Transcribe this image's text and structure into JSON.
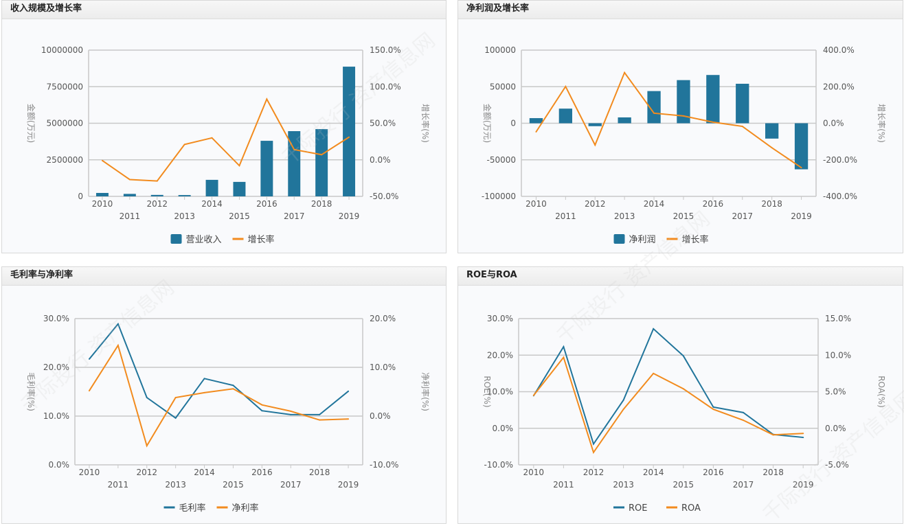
{
  "watermark": "千际投行 资产信息网",
  "colors": {
    "bar": "#21759b",
    "line_blue": "#21759b",
    "line_orange": "#f28b1e",
    "grid": "#c8c8c8",
    "axis_text": "#555555"
  },
  "chart_data": [
    {
      "title": "收入规模及增长率",
      "type": "bar+line",
      "categories": [
        "2010",
        "2011",
        "2012",
        "2013",
        "2014",
        "2015",
        "2016",
        "2017",
        "2018",
        "2019"
      ],
      "left_axis": {
        "label": "金额(万元)",
        "ticks": [
          "10000000",
          "7500000",
          "5000000",
          "2500000",
          "0"
        ],
        "range": [
          0,
          10000000
        ]
      },
      "right_axis": {
        "label": "增长率(%)",
        "ticks": [
          "150.0%",
          "100.0%",
          "50.0%",
          "0.0%",
          "-50.0%"
        ],
        "range": [
          -50,
          150
        ]
      },
      "series": [
        {
          "name": "营业收入",
          "kind": "bar",
          "axis": "left",
          "color": "#21759b",
          "values": [
            235000,
            170000,
            100000,
            90000,
            1130000,
            990000,
            3800000,
            4460000,
            4600000,
            8870000
          ]
        },
        {
          "name": "增长率",
          "kind": "line",
          "axis": "right",
          "color": "#f28b1e",
          "values": [
            -1,
            -27,
            -29,
            21,
            30,
            -8,
            83,
            14,
            7,
            31
          ]
        }
      ],
      "legend": "bottom",
      "grid": true
    },
    {
      "title": "净利润及增长率",
      "type": "bar+line",
      "categories": [
        "2010",
        "2011",
        "2012",
        "2013",
        "2014",
        "2015",
        "2016",
        "2017",
        "2018",
        "2019"
      ],
      "left_axis": {
        "label": "金额(万元)",
        "ticks": [
          "100000",
          "50000",
          "0",
          "-50000",
          "-100000"
        ],
        "range": [
          -100000,
          100000
        ]
      },
      "right_axis": {
        "label": "增长率(%)",
        "ticks": [
          "400.0%",
          "200.0%",
          "0.0%",
          "-200.0%",
          "-400.0%"
        ],
        "range": [
          -400,
          400
        ]
      },
      "series": [
        {
          "name": "净利润",
          "kind": "bar",
          "axis": "left",
          "color": "#21759b",
          "values": [
            7000,
            20000,
            -4000,
            8000,
            44000,
            59000,
            66000,
            54000,
            -21000,
            -63000
          ]
        },
        {
          "name": "增长率",
          "kind": "line",
          "axis": "right",
          "color": "#f28b1e",
          "values": [
            -47,
            201,
            -119,
            277,
            55,
            40,
            6,
            -17,
            -134,
            -243
          ]
        }
      ],
      "legend": "bottom",
      "grid": true
    },
    {
      "title": "毛利率与净利率",
      "type": "line",
      "categories": [
        "2010",
        "2011",
        "2012",
        "2013",
        "2014",
        "2015",
        "2016",
        "2017",
        "2018",
        "2019"
      ],
      "left_axis": {
        "label": "毛利率(%)",
        "ticks": [
          "30.0%",
          "20.0%",
          "10.0%",
          "0.0%"
        ],
        "range": [
          0,
          30
        ]
      },
      "right_axis": {
        "label": "净利率(%)",
        "ticks": [
          "20.0%",
          "10.0%",
          "0.0%",
          "-10.0%"
        ],
        "range": [
          -10,
          20
        ]
      },
      "series": [
        {
          "name": "毛利率",
          "kind": "line",
          "axis": "left",
          "color": "#21759b",
          "values": [
            21.7,
            28.9,
            13.8,
            9.6,
            17.7,
            16.3,
            11.1,
            10.3,
            10.3,
            15.1
          ]
        },
        {
          "name": "净利率",
          "kind": "line",
          "axis": "right",
          "color": "#f28b1e",
          "values": [
            5.2,
            14.5,
            -6.1,
            3.8,
            4.8,
            5.6,
            2.3,
            1.0,
            -0.8,
            -0.6
          ]
        }
      ],
      "legend": "bottom",
      "grid": true
    },
    {
      "title": "ROE与ROA",
      "type": "line",
      "categories": [
        "2010",
        "2011",
        "2012",
        "2013",
        "2014",
        "2015",
        "2016",
        "2017",
        "2018",
        "2019"
      ],
      "left_axis": {
        "label": "ROE(%)",
        "ticks": [
          "30.0%",
          "20.0%",
          "10.0%",
          "0.0%",
          "-10.0%"
        ],
        "range": [
          -10,
          30
        ]
      },
      "right_axis": {
        "label": "ROA(%)",
        "ticks": [
          "15.0%",
          "10.0%",
          "5.0%",
          "0.0%",
          "-5.0%"
        ],
        "range": [
          -5,
          15
        ]
      },
      "series": [
        {
          "name": "ROE",
          "kind": "line",
          "axis": "left",
          "color": "#21759b",
          "values": [
            8.9,
            22.3,
            -4.3,
            7.7,
            27.2,
            19.8,
            5.8,
            4.3,
            -1.7,
            -2.5
          ]
        },
        {
          "name": "ROA",
          "kind": "line",
          "axis": "right",
          "color": "#f28b1e",
          "values": [
            4.5,
            9.7,
            -3.3,
            2.6,
            7.5,
            5.4,
            2.6,
            1.1,
            -0.9,
            -0.7
          ]
        }
      ],
      "legend": "bottom",
      "grid": true
    }
  ]
}
